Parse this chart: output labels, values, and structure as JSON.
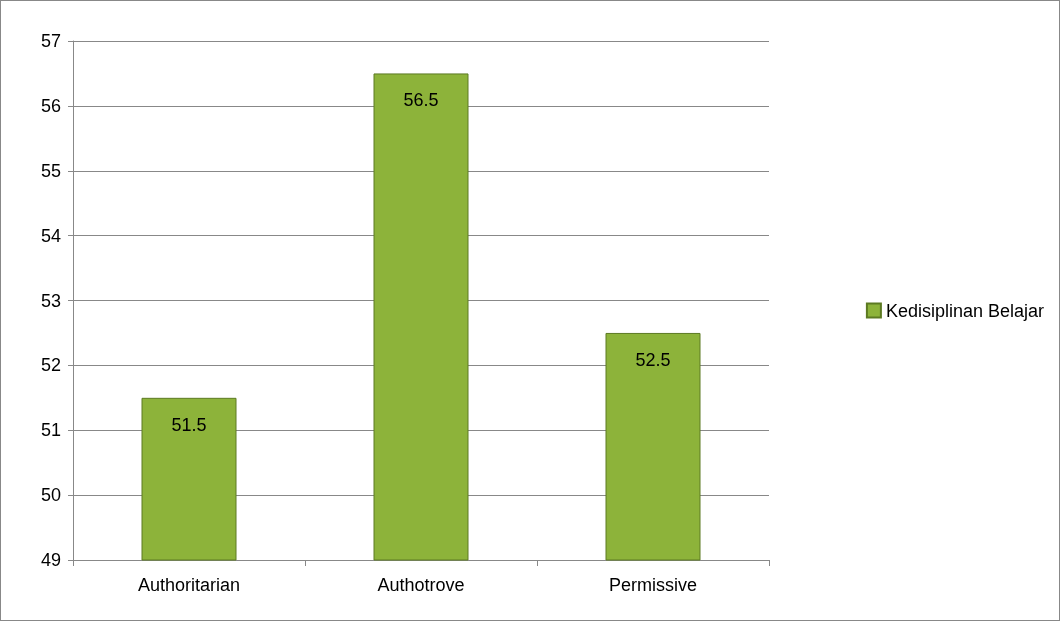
{
  "chart_data": {
    "type": "bar",
    "categories": [
      "Authoritarian",
      "Authotrove",
      "Permissive"
    ],
    "series": [
      {
        "name": "Kedisiplinan Belajar",
        "color": "#8db33a",
        "values": [
          51.5,
          56.5,
          52.5
        ]
      }
    ],
    "ylim": [
      49,
      57
    ],
    "yticks": [
      49,
      50,
      51,
      52,
      53,
      54,
      55,
      56,
      57
    ],
    "grid": "y",
    "legend": "right",
    "data_labels": true
  }
}
